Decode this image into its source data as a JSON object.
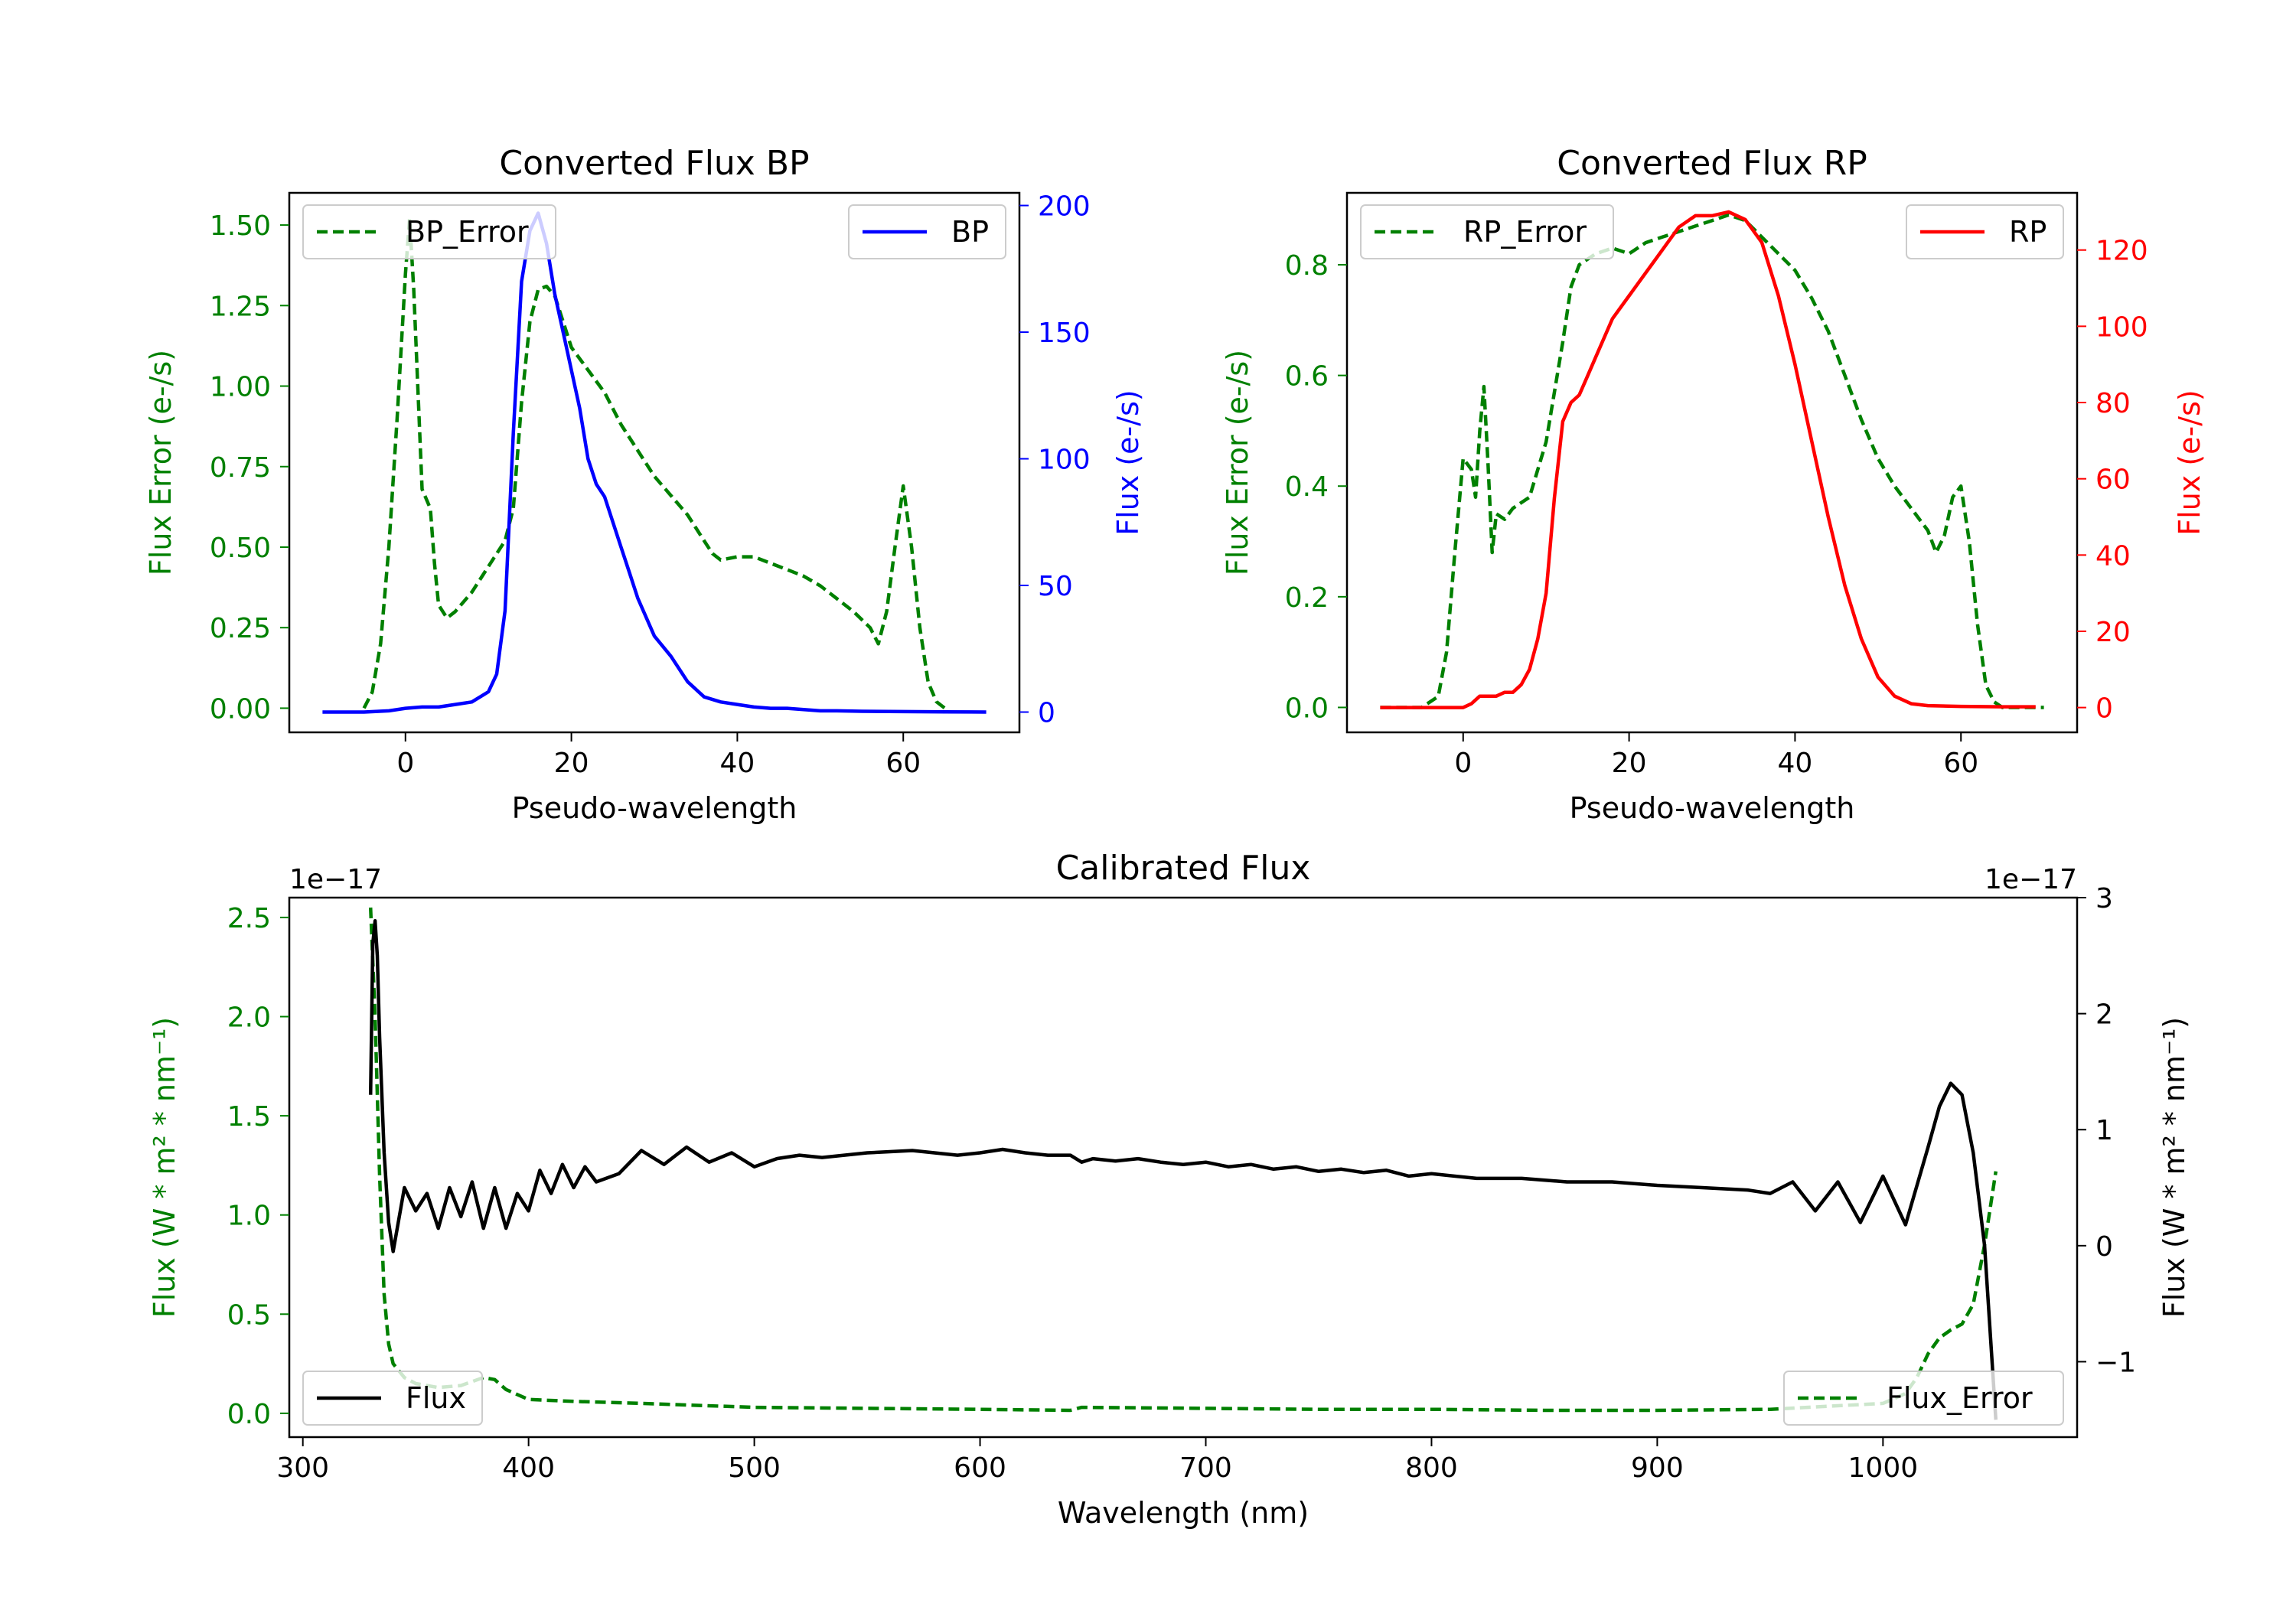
{
  "colors": {
    "error": "#008000",
    "bp": "#0000ff",
    "rp": "#ff0000",
    "flux": "#000000",
    "axis": "#000000"
  },
  "chart_data": [
    {
      "id": "bp",
      "type": "line",
      "title": "Converted Flux BP",
      "xlabel": "Pseudo-wavelength",
      "ylabel_left": "Flux Error (e-/s)",
      "ylabel_right": "Flux (e-/s)",
      "xlim": [
        -14,
        74
      ],
      "ylim_left": [
        -0.075,
        1.6
      ],
      "ylim_right": [
        -8,
        205
      ],
      "xticks": [
        0,
        20,
        40,
        60
      ],
      "yticks_left": [
        0.0,
        0.25,
        0.5,
        0.75,
        1.0,
        1.25,
        1.5
      ],
      "ytick_labels_left": [
        "0.00",
        "0.25",
        "0.50",
        "0.75",
        "1.00",
        "1.25",
        "1.50"
      ],
      "yticks_right": [
        0,
        50,
        100,
        150,
        200
      ],
      "ytick_labels_right": [
        "0",
        "50",
        "100",
        "150",
        "200"
      ],
      "legend_left": "BP_Error",
      "legend_right": "BP",
      "series": [
        {
          "name": "BP_Error",
          "axis": "left",
          "style": "dashed",
          "color": "#008000",
          "x": [
            -5,
            -4,
            -3,
            -2,
            -1,
            0,
            0.5,
            1,
            2,
            3,
            3.5,
            4,
            5,
            6,
            8,
            10,
            12,
            13,
            14,
            15,
            16,
            17,
            18,
            19,
            20,
            22,
            24,
            26,
            28,
            30,
            32,
            34,
            36,
            37,
            38,
            40,
            42,
            44,
            46,
            48,
            50,
            52,
            54,
            56,
            57,
            58,
            59,
            60,
            61,
            62,
            63,
            64,
            65
          ],
          "y": [
            0.0,
            0.05,
            0.2,
            0.5,
            0.9,
            1.35,
            1.52,
            1.3,
            0.68,
            0.62,
            0.45,
            0.32,
            0.28,
            0.3,
            0.36,
            0.44,
            0.52,
            0.62,
            0.95,
            1.2,
            1.3,
            1.31,
            1.28,
            1.2,
            1.12,
            1.05,
            0.98,
            0.88,
            0.8,
            0.72,
            0.66,
            0.6,
            0.52,
            0.48,
            0.46,
            0.47,
            0.47,
            0.45,
            0.43,
            0.41,
            0.38,
            0.34,
            0.3,
            0.25,
            0.2,
            0.3,
            0.5,
            0.69,
            0.5,
            0.25,
            0.08,
            0.02,
            0.0
          ]
        },
        {
          "name": "BP",
          "axis": "right",
          "style": "solid",
          "color": "#0000ff",
          "x": [
            -10,
            -5,
            -2,
            0,
            2,
            4,
            6,
            8,
            10,
            11,
            12,
            13,
            14,
            15,
            16,
            17,
            18,
            19,
            20,
            21,
            22,
            23,
            24,
            25,
            26,
            27,
            28,
            30,
            32,
            34,
            36,
            38,
            40,
            42,
            44,
            46,
            48,
            50,
            52,
            55,
            60,
            65,
            70
          ],
          "y": [
            0,
            0,
            0.5,
            1.5,
            2,
            2,
            3,
            4,
            8,
            15,
            40,
            110,
            170,
            190,
            197,
            185,
            165,
            150,
            135,
            120,
            100,
            90,
            85,
            75,
            65,
            55,
            45,
            30,
            22,
            12,
            6,
            4,
            3,
            2,
            1.5,
            1.5,
            1,
            0.5,
            0.5,
            0.3,
            0.2,
            0.1,
            0
          ]
        }
      ]
    },
    {
      "id": "rp",
      "type": "line",
      "title": "Converted Flux RP",
      "xlabel": "Pseudo-wavelength",
      "ylabel_left": "Flux Error (e-/s)",
      "ylabel_right": "Flux (e-/s)",
      "xlim": [
        -14,
        74
      ],
      "ylim_left": [
        -0.045,
        0.93
      ],
      "ylim_right": [
        -6.5,
        135
      ],
      "xticks": [
        0,
        20,
        40,
        60
      ],
      "yticks_left": [
        0.0,
        0.2,
        0.4,
        0.6,
        0.8
      ],
      "ytick_labels_left": [
        "0.0",
        "0.2",
        "0.4",
        "0.6",
        "0.8"
      ],
      "yticks_right": [
        0,
        20,
        40,
        60,
        80,
        100,
        120
      ],
      "ytick_labels_right": [
        "0",
        "20",
        "40",
        "60",
        "80",
        "100",
        "120"
      ],
      "legend_left": "RP_Error",
      "legend_right": "RP",
      "series": [
        {
          "name": "RP_Error",
          "axis": "left",
          "style": "dashed",
          "color": "#008000",
          "x": [
            -10,
            -5,
            -3,
            -2,
            -1,
            0,
            1,
            1.5,
            2,
            2.5,
            3,
            3.5,
            4,
            5,
            6,
            8,
            10,
            12,
            13,
            14,
            16,
            18,
            20,
            22,
            24,
            26,
            28,
            30,
            32,
            34,
            36,
            38,
            40,
            42,
            44,
            46,
            48,
            50,
            52,
            54,
            55,
            56,
            57,
            58,
            59,
            60,
            61,
            62,
            63,
            64,
            65,
            70
          ],
          "y": [
            0.0,
            0.0,
            0.02,
            0.1,
            0.28,
            0.45,
            0.43,
            0.38,
            0.5,
            0.58,
            0.44,
            0.28,
            0.35,
            0.34,
            0.36,
            0.38,
            0.48,
            0.66,
            0.76,
            0.8,
            0.82,
            0.83,
            0.82,
            0.84,
            0.85,
            0.86,
            0.87,
            0.88,
            0.89,
            0.88,
            0.85,
            0.82,
            0.79,
            0.74,
            0.68,
            0.6,
            0.52,
            0.45,
            0.4,
            0.36,
            0.34,
            0.32,
            0.28,
            0.31,
            0.38,
            0.4,
            0.3,
            0.15,
            0.04,
            0.01,
            0.0,
            0.0
          ]
        },
        {
          "name": "RP",
          "axis": "right",
          "style": "solid",
          "color": "#ff0000",
          "x": [
            -10,
            -5,
            -1,
            0,
            1,
            2,
            3,
            4,
            5,
            6,
            7,
            8,
            9,
            10,
            11,
            12,
            13,
            14,
            15,
            16,
            18,
            20,
            22,
            24,
            26,
            28,
            30,
            32,
            34,
            36,
            38,
            40,
            42,
            44,
            46,
            48,
            50,
            52,
            54,
            56,
            60,
            65,
            69
          ],
          "y": [
            0,
            0,
            0,
            0,
            1,
            3,
            3,
            3,
            4,
            4,
            6,
            10,
            18,
            30,
            55,
            75,
            80,
            82,
            87,
            92,
            102,
            108,
            114,
            120,
            126,
            129,
            129,
            130,
            128,
            122,
            108,
            90,
            70,
            50,
            32,
            18,
            8,
            3,
            1,
            0.5,
            0.3,
            0.2,
            0.2
          ]
        }
      ]
    },
    {
      "id": "cal",
      "type": "line",
      "title": "Calibrated Flux",
      "xlabel": "Wavelength (nm)",
      "ylabel_left": "Flux (W * m² * nm⁻¹)",
      "ylabel_right": "Flux (W * m² * nm⁻¹)",
      "offset_left": "1e−17",
      "offset_right": "1e−17",
      "xlim": [
        294,
        1086
      ],
      "ylim_left": [
        -0.12,
        2.6
      ],
      "ylim_right": [
        -1.65,
        3.0
      ],
      "xticks": [
        300,
        400,
        500,
        600,
        700,
        800,
        900,
        1000
      ],
      "yticks_left": [
        0.0,
        0.5,
        1.0,
        1.5,
        2.0,
        2.5
      ],
      "ytick_labels_left": [
        "0.0",
        "0.5",
        "1.0",
        "1.5",
        "2.0",
        "2.5"
      ],
      "yticks_right": [
        -1,
        0,
        1,
        2,
        3
      ],
      "ytick_labels_right": [
        "−1",
        "0",
        "1",
        "2",
        "3"
      ],
      "legend_left": "Flux",
      "legend_right": "Flux_Error",
      "series": [
        {
          "name": "Flux_Error",
          "axis": "left",
          "style": "dashed",
          "color": "#008000",
          "x": [
            330,
            332,
            334,
            336,
            338,
            340,
            345,
            350,
            360,
            370,
            380,
            385,
            390,
            400,
            420,
            450,
            500,
            550,
            600,
            640,
            645,
            700,
            750,
            800,
            850,
            900,
            950,
            1000,
            1010,
            1015,
            1020,
            1025,
            1030,
            1035,
            1040,
            1045,
            1050
          ],
          "y": [
            2.55,
            2.0,
            1.2,
            0.6,
            0.35,
            0.25,
            0.18,
            0.15,
            0.13,
            0.14,
            0.18,
            0.17,
            0.12,
            0.07,
            0.06,
            0.05,
            0.03,
            0.025,
            0.02,
            0.015,
            0.03,
            0.025,
            0.02,
            0.02,
            0.015,
            0.015,
            0.02,
            0.05,
            0.1,
            0.18,
            0.3,
            0.38,
            0.42,
            0.45,
            0.55,
            0.85,
            1.22
          ]
        },
        {
          "name": "Flux",
          "axis": "right",
          "style": "solid",
          "color": "#000000",
          "x": [
            330,
            331,
            332,
            333,
            334,
            336,
            338,
            340,
            345,
            350,
            355,
            360,
            365,
            370,
            375,
            380,
            385,
            390,
            395,
            400,
            405,
            410,
            415,
            420,
            425,
            430,
            440,
            450,
            460,
            470,
            480,
            490,
            500,
            510,
            520,
            530,
            550,
            570,
            590,
            600,
            610,
            620,
            630,
            640,
            645,
            650,
            660,
            670,
            680,
            690,
            700,
            710,
            720,
            730,
            740,
            750,
            760,
            770,
            780,
            790,
            800,
            820,
            840,
            860,
            880,
            900,
            920,
            940,
            950,
            960,
            970,
            980,
            990,
            1000,
            1010,
            1020,
            1025,
            1030,
            1035,
            1040,
            1045,
            1050
          ],
          "y": [
            1.3,
            2.6,
            2.8,
            2.5,
            1.8,
            0.8,
            0.2,
            -0.05,
            0.5,
            0.3,
            0.45,
            0.15,
            0.5,
            0.25,
            0.55,
            0.15,
            0.5,
            0.15,
            0.45,
            0.3,
            0.65,
            0.45,
            0.7,
            0.5,
            0.68,
            0.55,
            0.62,
            0.82,
            0.7,
            0.85,
            0.72,
            0.8,
            0.68,
            0.75,
            0.78,
            0.76,
            0.8,
            0.82,
            0.78,
            0.8,
            0.83,
            0.8,
            0.78,
            0.78,
            0.72,
            0.75,
            0.73,
            0.75,
            0.72,
            0.7,
            0.72,
            0.68,
            0.7,
            0.66,
            0.68,
            0.64,
            0.66,
            0.63,
            0.65,
            0.6,
            0.62,
            0.58,
            0.58,
            0.55,
            0.55,
            0.52,
            0.5,
            0.48,
            0.45,
            0.55,
            0.3,
            0.55,
            0.2,
            0.6,
            0.18,
            0.85,
            1.2,
            1.4,
            1.3,
            0.8,
            0.0,
            -1.5
          ]
        }
      ]
    }
  ]
}
